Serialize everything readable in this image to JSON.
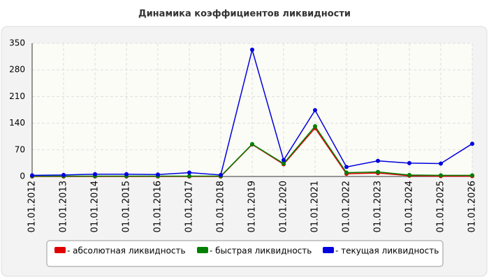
{
  "chart_data": {
    "type": "line",
    "title": "Динамика коэффициентов ликвидности",
    "categories": [
      "01.01.2012",
      "01.01.2013",
      "01.01.2014",
      "01.01.2015",
      "01.01.2016",
      "01.01.2017",
      "01.01.2018",
      "01.01.2019",
      "01.01.2020",
      "01.01.2021",
      "01.01.2022",
      "01.01.2023",
      "01.01.2024",
      "01.01.2025",
      "01.01.2026"
    ],
    "series": [
      {
        "name": "- абсолютная ликвидность",
        "color": "#e00000",
        "values": [
          0,
          0,
          0,
          0,
          0,
          0,
          0,
          84,
          32,
          127,
          7,
          9,
          2,
          1,
          1
        ]
      },
      {
        "name": "- быстрая ликвидность",
        "color": "#008000",
        "values": [
          1,
          1,
          1,
          1,
          1,
          1,
          1,
          85,
          34,
          132,
          10,
          12,
          4,
          3,
          3
        ]
      },
      {
        "name": "- текущая ликвидность",
        "color": "#0000e0",
        "values": [
          3,
          4,
          6,
          6,
          5,
          10,
          4,
          333,
          43,
          174,
          25,
          41,
          35,
          34,
          86
        ]
      }
    ],
    "ylim": [
      0,
      350
    ],
    "yticks": [
      0,
      70,
      140,
      210,
      280,
      350
    ],
    "grid": true
  }
}
